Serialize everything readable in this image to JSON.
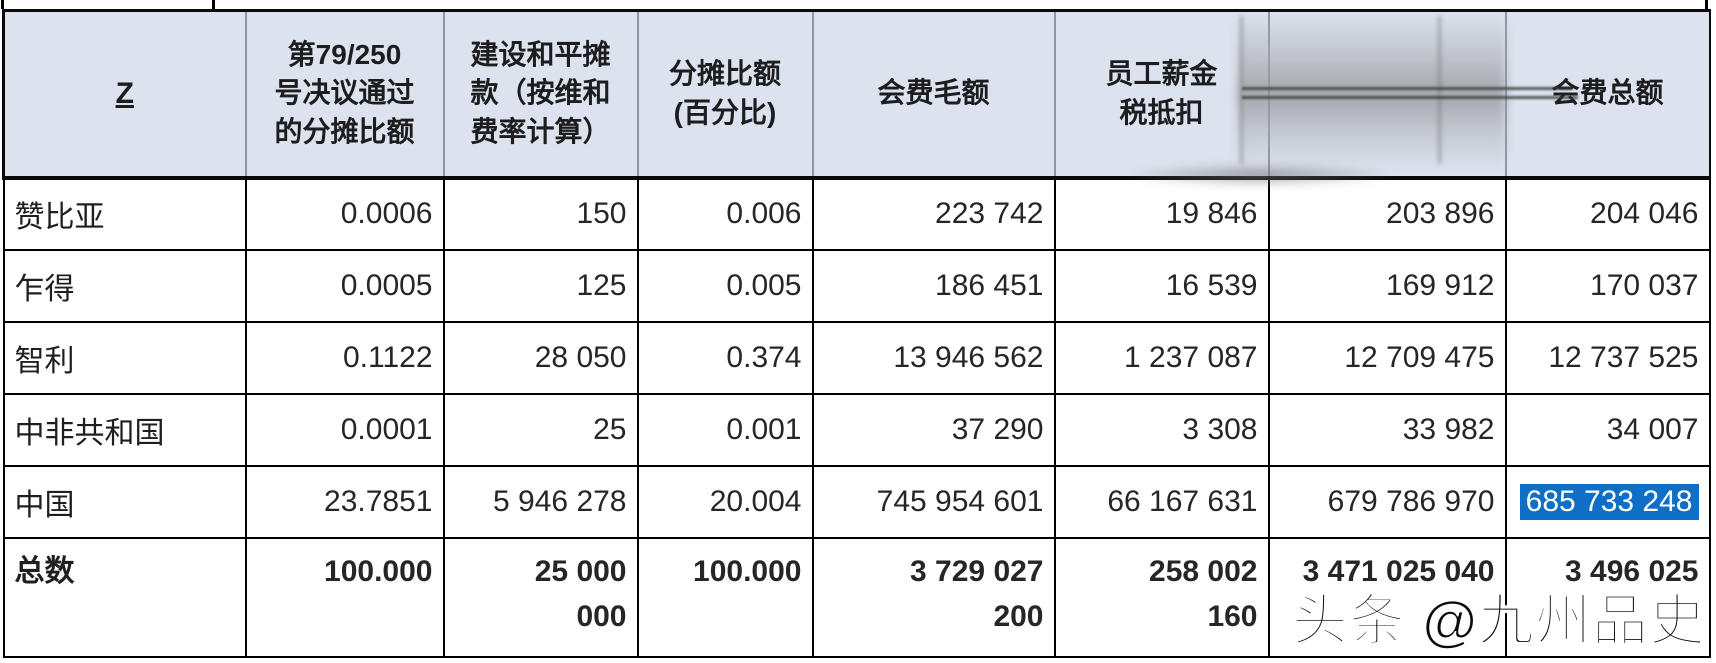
{
  "table": {
    "header": {
      "country": "Z",
      "res_rate_lines": [
        "第79/250",
        "号决议通过",
        "的分摊比额"
      ],
      "peacebuilding_lines": [
        "建设和平摊",
        "款（按维和",
        "费率计算）"
      ],
      "rate_pct_lines": [
        "分摊比额",
        "(百分比)"
      ],
      "gross": "会费毛额",
      "staff_tax_lines": [
        "员工薪金",
        "税抵扣"
      ],
      "obscured": "",
      "total": "会费总额"
    },
    "rows": [
      {
        "country": "赞比亚",
        "values": [
          "0.0006",
          "150",
          "0.006",
          "223 742",
          "19 846",
          "203 896",
          "204 046"
        ]
      },
      {
        "country": "乍得",
        "values": [
          "0.0005",
          "125",
          "0.005",
          "186 451",
          "16 539",
          "169 912",
          "170 037"
        ]
      },
      {
        "country": "智利",
        "values": [
          "0.1122",
          "28 050",
          "0.374",
          "13 946 562",
          "1 237 087",
          "12 709 475",
          "12 737 525"
        ]
      },
      {
        "country": "中非共和国",
        "values": [
          "0.0001",
          "25",
          "0.001",
          "37 290",
          "3 308",
          "33 982",
          "34 007"
        ]
      },
      {
        "country": "中国",
        "values": [
          "23.7851",
          "5 946 278",
          "20.004",
          "745 954 601",
          "66 167 631",
          "679 786 970",
          "685 733 248"
        ]
      }
    ],
    "total_row": {
      "label": "总数",
      "res_rate": "100.000",
      "peacebuilding_lines": [
        "25 000",
        "000"
      ],
      "rate_pct": "100.000",
      "gross_lines": [
        "3 729 027",
        "200"
      ],
      "staff_tax_lines": [
        "258 002",
        "160"
      ],
      "deduction_net": "3 471 025 040",
      "total": "3 496 025"
    }
  },
  "selection": {
    "value": "685 733 248",
    "color": "#0e6fc4"
  },
  "watermark": {
    "text": "头条 @九州品史"
  },
  "colors": {
    "header_bg": "#dce3ee",
    "selection_blue": "#0e6fc4",
    "border_black": "#000000",
    "header_separator_gray": "#8e96a1"
  }
}
